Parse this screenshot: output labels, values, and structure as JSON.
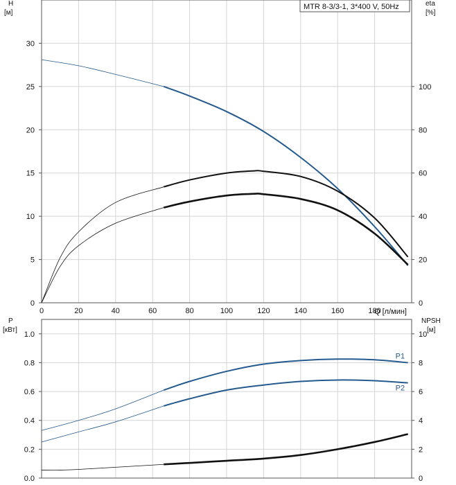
{
  "chart_data": [
    {
      "type": "line",
      "title": "MTR 8-3/3-1, 3*400 V, 50Hz",
      "xlabel": "Q [л/мин]",
      "ylabel_top": "H",
      "ylabel_unit": "[м]",
      "y2label_top": "eta",
      "y2label_unit": "[%]",
      "xlim": [
        0,
        200
      ],
      "ylim": [
        0,
        35
      ],
      "y2lim": [
        0,
        140
      ],
      "x_ticks": [
        0,
        20,
        40,
        60,
        80,
        100,
        120,
        140,
        160,
        180
      ],
      "y_ticks": [
        0,
        5,
        10,
        15,
        20,
        25,
        30
      ],
      "y2_ticks": [
        0,
        20,
        40,
        60,
        80,
        100
      ],
      "grid": true,
      "series": [
        {
          "name": "H",
          "axis": "left",
          "color": "#245a8d",
          "x": [
            0,
            20,
            40,
            66,
            80,
            100,
            120,
            140,
            160,
            180,
            198
          ],
          "values": [
            28.1,
            27.4,
            26.4,
            25.0,
            23.9,
            22.1,
            19.8,
            16.8,
            13.2,
            8.8,
            4.3
          ],
          "bold_from": 66
        },
        {
          "name": "eta (upper)",
          "axis": "left",
          "color": "#111111",
          "x": [
            0,
            10,
            20,
            40,
            66,
            80,
            100,
            115,
            120,
            140,
            160,
            180,
            198
          ],
          "values": [
            0,
            5.2,
            8.2,
            11.6,
            13.4,
            14.2,
            15.0,
            15.25,
            15.2,
            14.6,
            12.9,
            9.8,
            5.3
          ],
          "bold_from": 66
        },
        {
          "name": "eta (lower)",
          "axis": "left",
          "color": "#111111",
          "x": [
            0,
            10,
            20,
            40,
            66,
            80,
            100,
            115,
            120,
            140,
            160,
            180,
            198
          ],
          "values": [
            0,
            4.2,
            6.6,
            9.2,
            11.0,
            11.7,
            12.4,
            12.6,
            12.55,
            12.0,
            10.7,
            8.0,
            4.4
          ],
          "bold_from": 66,
          "thick": true
        }
      ]
    },
    {
      "type": "line",
      "xlabel": "",
      "ylabel_top": "P",
      "ylabel_unit": "[кВт]",
      "y2label_top": "NPSH",
      "y2label_unit": "[м]",
      "xlim": [
        0,
        200
      ],
      "ylim": [
        0,
        1.1
      ],
      "y2lim": [
        0,
        11
      ],
      "y_ticks": [
        "0.0",
        "0.2",
        "0.4",
        "0.6",
        "0.8",
        "1.0"
      ],
      "y_tick_values": [
        0,
        0.2,
        0.4,
        0.6,
        0.8,
        1.0
      ],
      "y2_ticks": [
        0,
        2,
        4,
        6,
        8,
        10
      ],
      "grid": true,
      "series": [
        {
          "name": "P1",
          "axis": "left",
          "color": "#245a8d",
          "label": "P1",
          "x": [
            0,
            20,
            40,
            66,
            80,
            100,
            120,
            140,
            160,
            180,
            198
          ],
          "values": [
            0.33,
            0.4,
            0.48,
            0.61,
            0.67,
            0.74,
            0.79,
            0.815,
            0.825,
            0.82,
            0.8
          ],
          "bold_from": 66
        },
        {
          "name": "P2",
          "axis": "left",
          "color": "#245a8d",
          "label": "P2",
          "x": [
            0,
            20,
            40,
            66,
            80,
            100,
            120,
            140,
            160,
            180,
            198
          ],
          "values": [
            0.25,
            0.32,
            0.39,
            0.5,
            0.55,
            0.61,
            0.645,
            0.67,
            0.68,
            0.675,
            0.66
          ],
          "bold_from": 66
        },
        {
          "name": "NPSH",
          "axis": "right",
          "color": "#111111",
          "x": [
            0,
            10,
            20,
            40,
            66,
            80,
            100,
            120,
            140,
            160,
            180,
            198
          ],
          "values": [
            0.55,
            0.55,
            0.6,
            0.75,
            0.95,
            1.05,
            1.2,
            1.35,
            1.6,
            2.0,
            2.5,
            3.05
          ],
          "bold_from": 66,
          "thick": true
        }
      ]
    }
  ]
}
